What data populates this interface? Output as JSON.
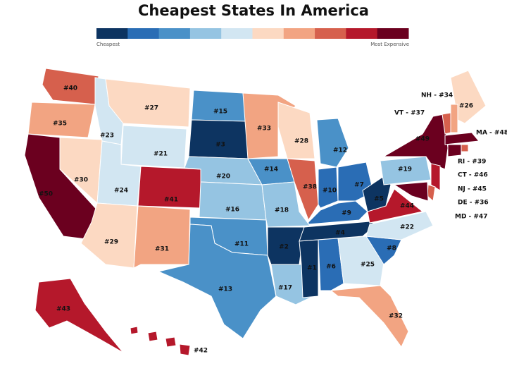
{
  "title": "Cheapest States In America",
  "legend": {
    "colors": [
      "#0d3461",
      "#2a6db5",
      "#4a91c8",
      "#95c4e2",
      "#d2e6f2",
      "#fcd9c2",
      "#f2a482",
      "#d6604d",
      "#b5182b",
      "#6b001f"
    ],
    "low_label": "Cheapest",
    "high_label": "Most Expensive"
  },
  "states": [
    {
      "label": "#40",
      "color": "#d6604d"
    },
    {
      "label": "#35",
      "color": "#f2a482"
    },
    {
      "label": "#50",
      "color": "#6b001f"
    },
    {
      "label": "#30",
      "color": "#fcd9c2"
    },
    {
      "label": "#23",
      "color": "#d2e6f2"
    },
    {
      "label": "#27",
      "color": "#fcd9c2"
    },
    {
      "label": "#21",
      "color": "#d2e6f2"
    },
    {
      "label": "#24",
      "color": "#d2e6f2"
    },
    {
      "label": "#29",
      "color": "#fcd9c2"
    },
    {
      "label": "#41",
      "color": "#b5182b"
    },
    {
      "label": "#31",
      "color": "#f2a482"
    },
    {
      "label": "#15",
      "color": "#4a91c8"
    },
    {
      "label": "#3",
      "color": "#0d3461"
    },
    {
      "label": "#20",
      "color": "#95c4e2"
    },
    {
      "label": "#16",
      "color": "#95c4e2"
    },
    {
      "label": "#11",
      "color": "#4a91c8"
    },
    {
      "label": "#13",
      "color": "#4a91c8"
    },
    {
      "label": "#33",
      "color": "#f2a482"
    },
    {
      "label": "#14",
      "color": "#4a91c8"
    },
    {
      "label": "#18",
      "color": "#95c4e2"
    },
    {
      "label": "#2",
      "color": "#0d3461"
    },
    {
      "label": "#17",
      "color": "#95c4e2"
    },
    {
      "label": "#28",
      "color": "#fcd9c2"
    },
    {
      "label": "#38",
      "color": "#d6604d"
    },
    {
      "label": "#12",
      "color": "#4a91c8"
    },
    {
      "label": "#10",
      "color": "#2a6db5"
    },
    {
      "label": "#7",
      "color": "#2a6db5"
    },
    {
      "label": "#9",
      "color": "#2a6db5"
    },
    {
      "label": "#4",
      "color": "#0d3461"
    },
    {
      "label": "#1",
      "color": "#0d3461"
    },
    {
      "label": "#6",
      "color": "#2a6db5"
    },
    {
      "label": "#25",
      "color": "#d2e6f2"
    },
    {
      "label": "#32",
      "color": "#f2a482"
    },
    {
      "label": "#8",
      "color": "#2a6db5"
    },
    {
      "label": "#22",
      "color": "#d2e6f2"
    },
    {
      "label": "#44",
      "color": "#b5182b"
    },
    {
      "label": "#5",
      "color": "#0d3461"
    },
    {
      "label": "#19",
      "color": "#95c4e2"
    },
    {
      "label": "#49",
      "color": "#6b001f"
    },
    {
      "label": "#26",
      "color": "#fcd9c2"
    },
    {
      "label": "NH - #34",
      "color": "#f2a482"
    },
    {
      "label": "VT - #37",
      "color": "#d6604d"
    },
    {
      "label": "MA - #48",
      "color": "#6b001f"
    },
    {
      "label": "RI - #39",
      "color": "#d6604d"
    },
    {
      "label": "CT - #46",
      "color": "#6b001f"
    },
    {
      "label": "NJ - #45",
      "color": "#b5182b"
    },
    {
      "label": "DE - #36",
      "color": "#d6604d"
    },
    {
      "label": "MD - #47",
      "color": "#6b001f"
    },
    {
      "label": "#43",
      "color": "#b5182b"
    },
    {
      "label": "#42",
      "color": "#b5182b"
    }
  ]
}
